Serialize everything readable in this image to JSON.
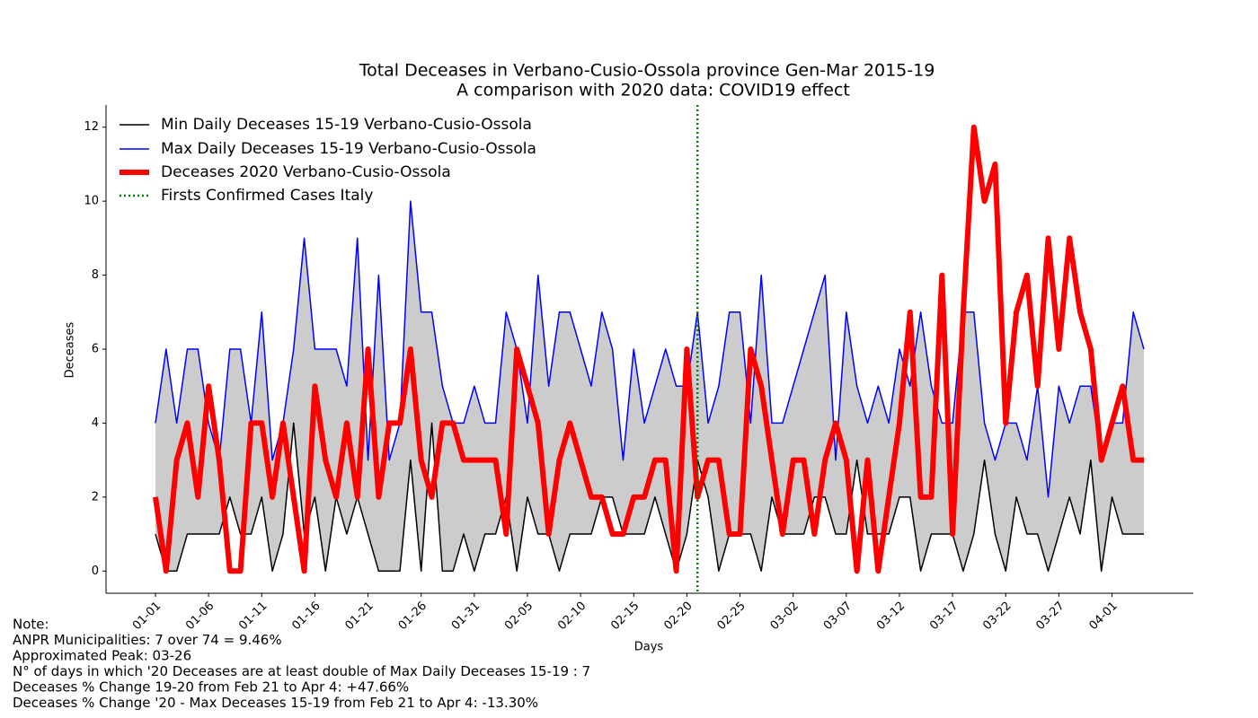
{
  "chart_data": {
    "type": "line",
    "title": "Total Deceases in Verbano-Cusio-Ossola province Gen-Mar 2015-19",
    "subtitle": "A comparison with 2020 data: COVID19 effect",
    "xlabel": "Days",
    "ylabel": "Deceases",
    "categories": [
      "01-01",
      null,
      null,
      null,
      null,
      "01-06",
      null,
      null,
      null,
      null,
      "01-11",
      null,
      null,
      null,
      null,
      "01-16",
      null,
      null,
      null,
      null,
      "01-21",
      null,
      null,
      null,
      null,
      "01-26",
      null,
      null,
      null,
      null,
      "01-31",
      null,
      null,
      null,
      null,
      "02-05",
      null,
      null,
      null,
      null,
      "02-10",
      null,
      null,
      null,
      null,
      "02-15",
      null,
      null,
      null,
      null,
      "02-20",
      null,
      null,
      null,
      null,
      "02-25",
      null,
      null,
      null,
      null,
      "03-02",
      null,
      null,
      null,
      null,
      "03-07",
      null,
      null,
      null,
      null,
      "03-12",
      null,
      null,
      null,
      null,
      "03-17",
      null,
      null,
      null,
      null,
      "03-22",
      null,
      null,
      null,
      null,
      "03-27",
      null,
      null,
      null,
      null,
      "04-01",
      null,
      null,
      null
    ],
    "xlim": [
      -4.65,
      97.65
    ],
    "ylim": [
      -0.6,
      12.6
    ],
    "yticks": [
      0,
      2,
      4,
      6,
      8,
      10,
      12
    ],
    "fill_between": {
      "color": "#cccccc"
    },
    "series": [
      {
        "name": "Min Daily Deceases 15-19 Verbano-Cusio-Ossola",
        "color": "#000000",
        "width": 1.5,
        "values": [
          1,
          0,
          0,
          1,
          1,
          1,
          1,
          2,
          1,
          1,
          2,
          0,
          1,
          4,
          1,
          2,
          0,
          2,
          1,
          2,
          1,
          0,
          0,
          0,
          3,
          0,
          4,
          0,
          0,
          1,
          0,
          1,
          1,
          2,
          0,
          2,
          1,
          1,
          0,
          1,
          1,
          1,
          2,
          2,
          1,
          1,
          1,
          2,
          1,
          0,
          1,
          3,
          2,
          0,
          1,
          1,
          1,
          0,
          2,
          1,
          1,
          1,
          2,
          2,
          1,
          1,
          3,
          1,
          1,
          1,
          2,
          2,
          0,
          1,
          1,
          1,
          0,
          1,
          3,
          1,
          0,
          2,
          1,
          1,
          0,
          1,
          2,
          1,
          3,
          0,
          2,
          1,
          1,
          1
        ]
      },
      {
        "name": "Max Daily Deceases 15-19 Verbano-Cusio-Ossola",
        "color": "#0000ff",
        "width": 1.5,
        "values": [
          4,
          6,
          4,
          6,
          6,
          4,
          3,
          6,
          6,
          4,
          7,
          3,
          4,
          6,
          9,
          6,
          6,
          6,
          5,
          9,
          3,
          8,
          3,
          4,
          10,
          7,
          7,
          5,
          4,
          4,
          5,
          4,
          4,
          7,
          6,
          4,
          8,
          5,
          7,
          7,
          6,
          5,
          7,
          6,
          3,
          6,
          4,
          5,
          6,
          5,
          5,
          7,
          4,
          5,
          7,
          7,
          4,
          8,
          4,
          4,
          5,
          6,
          7,
          8,
          3,
          7,
          5,
          4,
          5,
          4,
          6,
          5,
          7,
          5,
          4,
          4,
          7,
          7,
          4,
          3,
          4,
          4,
          3,
          5,
          2,
          5,
          4,
          5,
          5,
          3,
          4,
          4,
          7,
          6
        ]
      },
      {
        "name": "Deceases 2020 Verbano-Cusio-Ossola",
        "color": "#ff0000",
        "width": 6,
        "values": [
          2,
          0,
          3,
          4,
          2,
          5,
          3,
          0,
          0,
          4,
          4,
          2,
          4,
          2,
          0,
          5,
          3,
          2,
          4,
          2,
          6,
          2,
          4,
          4,
          6,
          3,
          2,
          4,
          4,
          3,
          3,
          3,
          3,
          1,
          6,
          5,
          4,
          1,
          3,
          4,
          3,
          2,
          2,
          1,
          1,
          2,
          2,
          3,
          3,
          0,
          6,
          2,
          3,
          3,
          1,
          1,
          6,
          5,
          3,
          1,
          3,
          3,
          1,
          3,
          4,
          3,
          0,
          3,
          0,
          2,
          4,
          7,
          2,
          2,
          8,
          1,
          7,
          12,
          10,
          11,
          4,
          7,
          8,
          5,
          9,
          6,
          9,
          7,
          6,
          3,
          4,
          5,
          3,
          3
        ]
      }
    ],
    "vline": {
      "name": "Firsts Confirmed Cases Italy",
      "color": "#008000",
      "x": 51
    },
    "notes": [
      "Note:",
      "ANPR Municipalities: 7 over 74 = 9.46%",
      "Approximated Peak: 03-26",
      "N° of  days in which '20 Deceases are at least double of Max Daily Deceases 15-19   : 7",
      "Deceases % Change 19-20 from Feb 21 to Apr 4: +47.66%",
      "Deceases % Change '20 - Max Deceases 15-19 from Feb 21 to Apr 4: -13.30%"
    ]
  }
}
